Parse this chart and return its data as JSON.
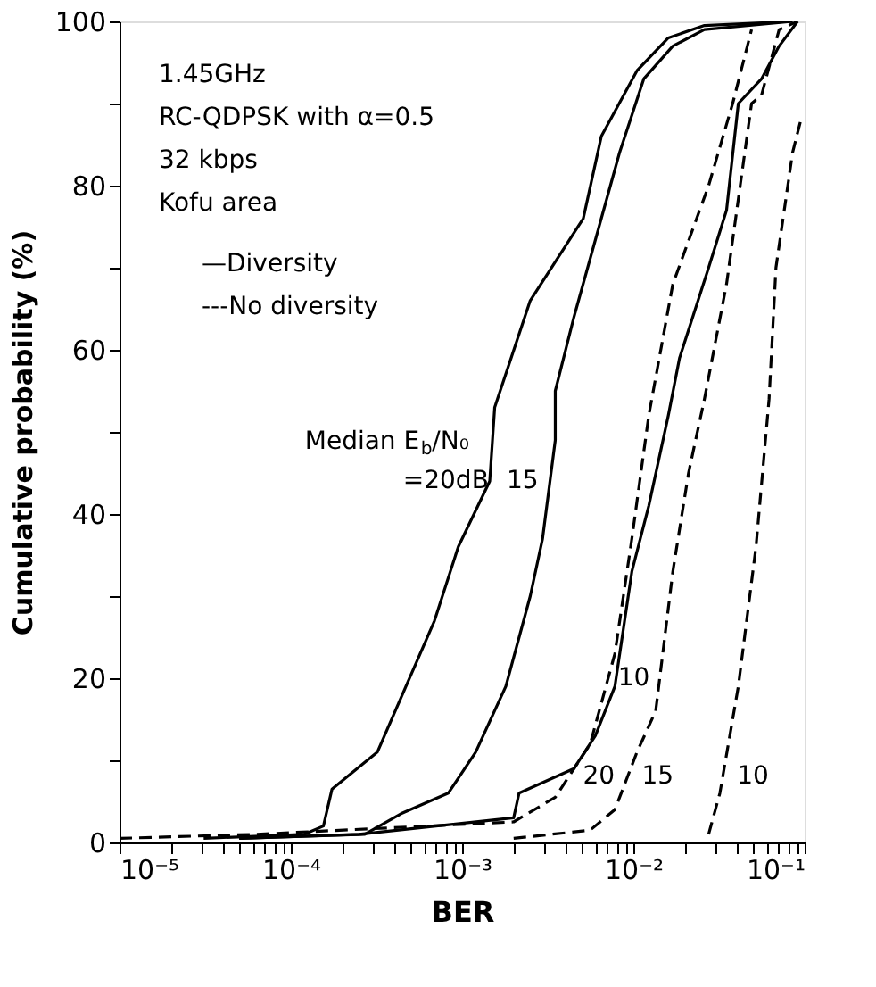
{
  "chart_data": {
    "type": "line",
    "xlabel": "BER",
    "ylabel": "Cumulative probability (%)",
    "log": "x",
    "grid": false,
    "legend": false,
    "marker": "none",
    "xlim": [
      1e-05,
      0.1
    ],
    "ylim": [
      0,
      100
    ],
    "xticks": [
      {
        "value": 1e-05,
        "label": "10⁻⁵"
      },
      {
        "value": 2e-05,
        "label": null
      },
      {
        "value": 3e-05,
        "label": null
      },
      {
        "value": 4e-05,
        "label": null
      },
      {
        "value": 5e-05,
        "label": null
      },
      {
        "value": 6e-05,
        "label": null
      },
      {
        "value": 7e-05,
        "label": null
      },
      {
        "value": 8e-05,
        "label": null
      },
      {
        "value": 9e-05,
        "label": null
      },
      {
        "value": 0.0001,
        "label": "10⁻⁴"
      },
      {
        "value": 0.0002,
        "label": null
      },
      {
        "value": 0.0003,
        "label": null
      },
      {
        "value": 0.0004,
        "label": null
      },
      {
        "value": 0.0005,
        "label": null
      },
      {
        "value": 0.0006,
        "label": null
      },
      {
        "value": 0.0007,
        "label": null
      },
      {
        "value": 0.0008,
        "label": null
      },
      {
        "value": 0.0009,
        "label": null
      },
      {
        "value": 0.001,
        "label": "10⁻³"
      },
      {
        "value": 0.002,
        "label": null
      },
      {
        "value": 0.003,
        "label": null
      },
      {
        "value": 0.004,
        "label": null
      },
      {
        "value": 0.005,
        "label": null
      },
      {
        "value": 0.006,
        "label": null
      },
      {
        "value": 0.007,
        "label": null
      },
      {
        "value": 0.008,
        "label": null
      },
      {
        "value": 0.009,
        "label": null
      },
      {
        "value": 0.01,
        "label": "10⁻²"
      },
      {
        "value": 0.02,
        "label": null
      },
      {
        "value": 0.03,
        "label": null
      },
      {
        "value": 0.04,
        "label": null
      },
      {
        "value": 0.05,
        "label": null
      },
      {
        "value": 0.06,
        "label": null
      },
      {
        "value": 0.07,
        "label": null
      },
      {
        "value": 0.08,
        "label": null
      },
      {
        "value": 0.09,
        "label": null
      },
      {
        "value": 0.1,
        "label": "10⁻¹"
      }
    ],
    "yticks": [
      0,
      {
        "value": 10,
        "label": null
      },
      20,
      {
        "value": 30,
        "label": null
      },
      40,
      {
        "value": 50,
        "label": null
      },
      60,
      {
        "value": 70,
        "label": null
      },
      80,
      {
        "value": 90,
        "label": null
      },
      100
    ],
    "series": [
      {
        "name": "=20dB",
        "color": "#000000",
        "line_style": "solid",
        "x": [
          3.1e-05,
          0.00012,
          0.000155,
          0.000174,
          0.00032,
          0.00047,
          0.00069,
          0.00095,
          0.00145,
          0.00155,
          0.0025,
          0.0051,
          0.0065,
          0.0105,
          0.016,
          0.026,
          0.085
        ],
        "values": [
          0.5,
          1,
          2,
          6.5,
          11,
          19,
          27,
          36,
          44,
          53,
          66,
          76,
          86,
          94,
          98,
          99.5,
          100
        ]
      },
      {
        "name": "15",
        "color": "#000000",
        "line_style": "solid",
        "x": [
          5e-05,
          0.00027,
          0.00044,
          0.00083,
          0.0012,
          0.0018,
          0.0025,
          0.00295,
          0.0035,
          0.0035,
          0.0045,
          0.0065,
          0.0083,
          0.0115,
          0.017,
          0.026,
          0.085
        ],
        "values": [
          0.5,
          1,
          3.5,
          6,
          11,
          19,
          30,
          37,
          49,
          55,
          64,
          76,
          84,
          93,
          97,
          99,
          100
        ]
      },
      {
        "name": "10",
        "color": "#000000",
        "line_style": "solid",
        "x": [
          5e-05,
          0.00025,
          0.002,
          0.00215,
          0.0045,
          0.006,
          0.0078,
          0.0098,
          0.0123,
          0.016,
          0.0186,
          0.0275,
          0.035,
          0.041,
          0.056,
          0.071,
          0.091
        ],
        "values": [
          0.5,
          1,
          3,
          6,
          9,
          13,
          19,
          33,
          41,
          52,
          59,
          70,
          77,
          90,
          93,
          97,
          100
        ]
      },
      {
        "name": "20",
        "color": "#000000",
        "line_style": "dashed",
        "x": [
          1e-05,
          6.3e-05,
          0.002,
          0.0035,
          0.0056,
          0.0078,
          0.0098,
          0.0123,
          0.017,
          0.0275,
          0.038,
          0.049
        ],
        "values": [
          0.5,
          1,
          2.5,
          5.5,
          12,
          23,
          37,
          52,
          68,
          80,
          90,
          99
        ]
      },
      {
        "name": "15",
        "color": "#000000",
        "line_style": "dashed",
        "x": [
          0.002,
          0.0056,
          0.0078,
          0.0105,
          0.0135,
          0.017,
          0.021,
          0.026,
          0.035,
          0.049,
          0.056,
          0.071,
          0.091
        ],
        "values": [
          0.5,
          1.5,
          4,
          11,
          16,
          33,
          45,
          54,
          68,
          90,
          91,
          99,
          100
        ]
      },
      {
        "name": "10",
        "color": "#000000",
        "line_style": "dashed",
        "x": [
          0.0275,
          0.032,
          0.041,
          0.052,
          0.062,
          0.068,
          0.085,
          0.095
        ],
        "values": [
          1,
          6,
          19,
          36,
          54,
          70,
          84,
          88
        ]
      }
    ],
    "annotations": [
      "1.45GHz",
      "RC-QDPSK with α=0.5",
      "32 kbps",
      "Kofu area",
      "—Diversity",
      "---No diversity",
      "Median E$_{b}$/N₀"
    ]
  }
}
